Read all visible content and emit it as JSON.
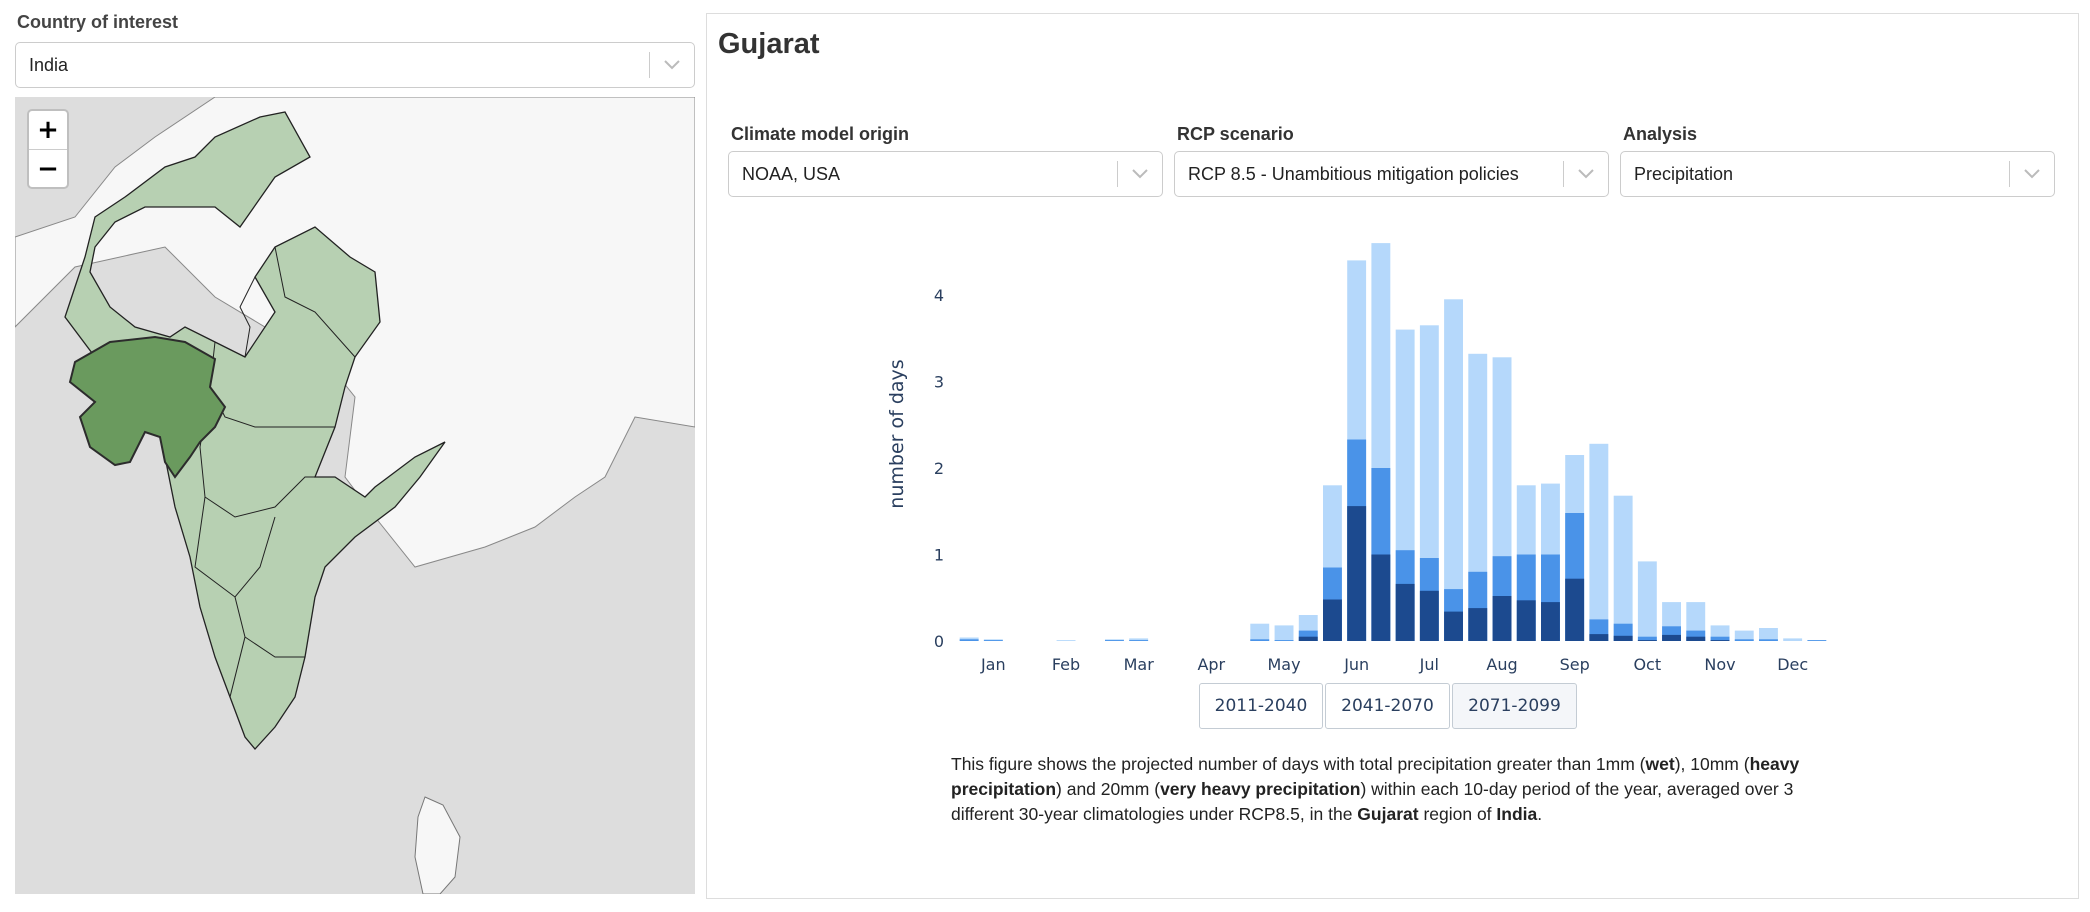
{
  "sidebar": {
    "country_label": "Country of interest",
    "country_value": "India"
  },
  "map": {
    "zoom_in": "+",
    "zoom_out": "−"
  },
  "main": {
    "region_title": "Gujarat",
    "controls": [
      {
        "label": "Climate model origin",
        "value": "NOAA, USA"
      },
      {
        "label": "RCP scenario",
        "value": "RCP 8.5 - Unambitious mitigation policies"
      },
      {
        "label": "Analysis",
        "value": "Precipitation"
      }
    ],
    "periods": [
      "2011-2040",
      "2041-2070",
      "2071-2099"
    ],
    "description": {
      "p1": "This figure shows the projected number of days with total precipitation greater than 1mm (",
      "b1": "wet",
      "p2": "), 10mm (",
      "b2": "heavy precipitation",
      "p3": ") and 20mm (",
      "b3": "very heavy precipitation",
      "p4": ") within each 10-day period of the year, averaged over 3 different 30-year climatologies under RCP8.5, in the ",
      "b4": "Gujarat",
      "p5": " region of ",
      "b5": "India",
      "p6": "."
    }
  },
  "colors": {
    "map_selected": "#6a9a5e",
    "map_region": "#b7d0b2",
    "bar_light": "#b5d8fb",
    "bar_mid": "#4a93e8",
    "bar_dark": "#1c4a8f"
  },
  "chart_data": {
    "type": "bar",
    "ylabel": "number of days",
    "ylim": [
      0,
      4.7
    ],
    "yticks": [
      0,
      1,
      2,
      3,
      4
    ],
    "month_labels": [
      "Jan",
      "Feb",
      "Mar",
      "Apr",
      "May",
      "Jun",
      "Jul",
      "Aug",
      "Sep",
      "Oct",
      "Nov",
      "Dec"
    ],
    "stacked_overlay": true,
    "series": [
      {
        "name": "",
        "values": [
          0.04,
          0.02,
          0,
          0,
          0.01,
          0,
          0.02,
          0.03,
          0,
          0,
          0,
          0,
          0.2,
          0.18,
          0.3,
          1.8,
          4.4,
          4.6,
          3.6,
          3.65,
          3.95,
          3.32,
          3.28,
          1.8,
          1.82,
          2.15,
          2.28,
          1.68,
          0.92,
          0.45,
          0.45,
          0.18,
          0.12,
          0.15,
          0.03,
          0
        ]
      },
      {
        "name": "",
        "values": [
          0.02,
          0.01,
          0,
          0,
          0,
          0,
          0.01,
          0.01,
          0,
          0,
          0,
          0,
          0.02,
          0.01,
          0.12,
          0.85,
          2.33,
          2.0,
          1.05,
          0.96,
          0.6,
          0.8,
          0.98,
          1.0,
          1.0,
          1.48,
          0.25,
          0.2,
          0.05,
          0.17,
          0.12,
          0.05,
          0.02,
          0.02,
          0,
          0.01
        ]
      },
      {
        "name": "",
        "values": [
          0,
          0,
          0,
          0,
          0,
          0,
          0,
          0,
          0,
          0,
          0,
          0,
          0,
          0,
          0.05,
          0.48,
          1.56,
          1.0,
          0.66,
          0.58,
          0.34,
          0.38,
          0.52,
          0.47,
          0.45,
          0.72,
          0.08,
          0.06,
          0.01,
          0.07,
          0.05,
          0.01,
          0,
          0,
          0,
          0
        ]
      }
    ]
  }
}
